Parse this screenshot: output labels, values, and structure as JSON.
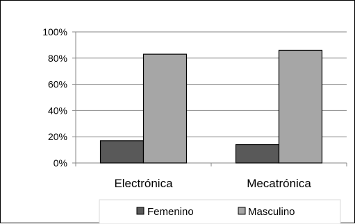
{
  "chart_data": {
    "type": "bar",
    "categories": [
      "Electrónica",
      "Mecatrónica"
    ],
    "series": [
      {
        "name": "Femenino",
        "values": [
          17,
          14
        ],
        "color": "#595959"
      },
      {
        "name": "Masculino",
        "values": [
          83,
          86
        ],
        "color": "#a6a6a6"
      }
    ],
    "y_ticks": [
      "0%",
      "20%",
      "40%",
      "60%",
      "80%",
      "100%"
    ],
    "ylim": [
      0,
      100
    ],
    "y_unit": "%",
    "grid": true,
    "legend": "bottom",
    "title": "",
    "xlabel": "",
    "ylabel": ""
  }
}
